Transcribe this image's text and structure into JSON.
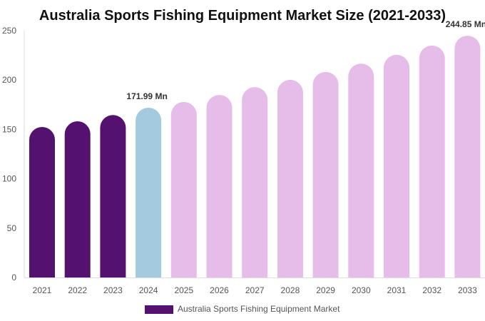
{
  "chart_data": {
    "type": "bar",
    "title": "Australia Sports Fishing Equipment Market Size (2021-2033)",
    "xlabel": "",
    "ylabel": "",
    "ylim": [
      0,
      250
    ],
    "yticks": [
      0,
      50,
      100,
      150,
      200,
      250
    ],
    "grid": false,
    "legend_position": "bottom",
    "categories": [
      "2021",
      "2022",
      "2023",
      "2024",
      "2025",
      "2026",
      "2027",
      "2028",
      "2029",
      "2030",
      "2031",
      "2032",
      "2033"
    ],
    "series": [
      {
        "name": "Australia Sports Fishing Equipment Market",
        "values": [
          152.5,
          158.2,
          164.6,
          171.99,
          177.8,
          184.9,
          192.8,
          200.2,
          208.2,
          216.6,
          225.5,
          234.9,
          244.85
        ]
      }
    ],
    "bar_colors": {
      "historical": "#541170",
      "current": "#a3cadf",
      "forecast": "#e6bce8"
    },
    "data_labels": [
      {
        "category": "2024",
        "text": "171.99 Mn"
      },
      {
        "category": "2033",
        "text": "244.85 Mn"
      }
    ]
  }
}
